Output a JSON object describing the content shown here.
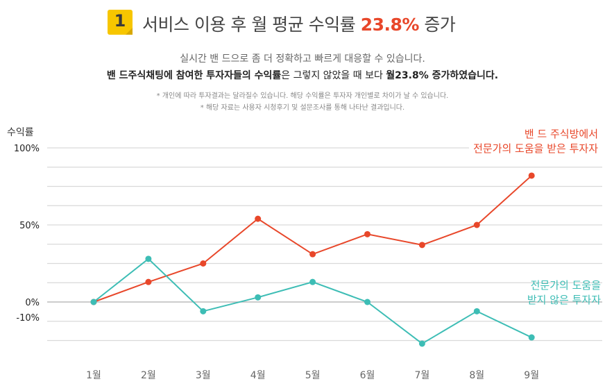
{
  "header": {
    "badge": "1",
    "title_text": "서비스 이용 후 월 평균 수익률 ",
    "title_highlight": "23.8%",
    "title_suffix": " 증가"
  },
  "description": {
    "line1": "실시간 밴 드으로 좀 더 정확하고 빠르게 대응할 수 있습니다.",
    "line2_a": "밴 드주식채팅에 참여한 투자자들의 수익률",
    "line2_b": "은 그렇지 않았을 때 보다 ",
    "line2_c": "월23.8% 증가하였습니다.",
    "note1": "* 개인에 따라 투자결과는 달라질수 있습니다. 해당 수익률은 투자자 개인별로 차이가 날 수 있습니다.",
    "note2": "* 해당 자료는 사용자 시청후기 및 설문조사를 통해 나타난 결과입니다."
  },
  "chart_data": {
    "type": "line",
    "ylabel": "수익률",
    "categories": [
      "1월",
      "2월",
      "3월",
      "4월",
      "5월",
      "6월",
      "7월",
      "8월",
      "9월"
    ],
    "y_ticks": [
      {
        "value": 100,
        "label": "100%"
      },
      {
        "value": 50,
        "label": "50%"
      },
      {
        "value": 0,
        "label": "0%"
      },
      {
        "value": -10,
        "label": "-10%"
      }
    ],
    "ylim": [
      -35,
      100
    ],
    "grid": true,
    "series": [
      {
        "name_lines": [
          "밴 드 주식방에서",
          "전문가의 도움을 받은 투자자"
        ],
        "color": "#e8472a",
        "values": [
          0,
          13,
          25,
          54,
          31,
          44,
          37,
          50,
          82
        ]
      },
      {
        "name_lines": [
          "전문가의 도움을",
          "받지 않은 투자자"
        ],
        "color": "#3dbdb5",
        "values": [
          0,
          28,
          -6,
          3,
          13,
          0,
          -27,
          -6,
          -23
        ]
      }
    ]
  }
}
